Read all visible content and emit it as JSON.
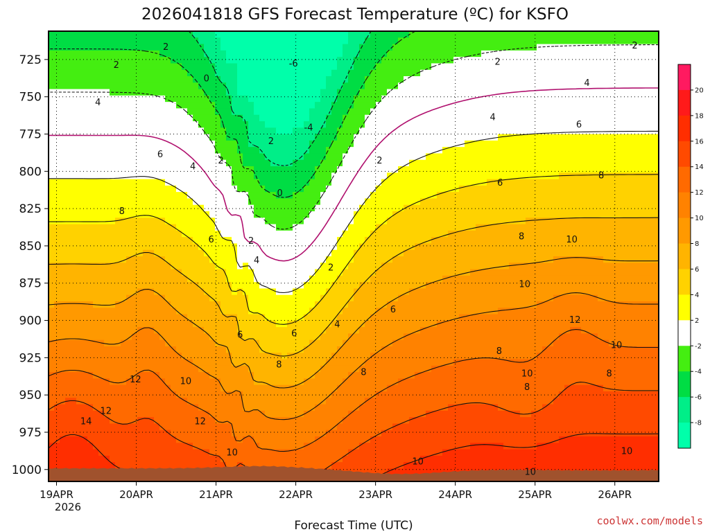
{
  "chart_data": {
    "type": "contour",
    "title": "2026041818 GFS Forecast Temperature (ºC) for KSFO",
    "xlabel": "Forecast Time (UTC)",
    "ylabel": "Pressure (hPa)",
    "x_ticks": [
      "19APR",
      "20APR",
      "21APR",
      "22APR",
      "23APR",
      "24APR",
      "25APR",
      "26APR"
    ],
    "x_sublabel": "2026",
    "y_ticks": [
      725,
      750,
      775,
      800,
      825,
      850,
      875,
      900,
      925,
      950,
      975,
      1000
    ],
    "ylim": [
      1008,
      706
    ],
    "xlim_days": [
      -0.1,
      7.55
    ],
    "colorbar_ticks": [
      20,
      18,
      16,
      14,
      12,
      10,
      8,
      6,
      4,
      2,
      -2,
      -4,
      -6,
      -8
    ],
    "colorbar_levels": [
      {
        "min": 20,
        "max": 22,
        "color": "#ff1a60"
      },
      {
        "min": 18,
        "max": 20,
        "color": "#ff1a1a"
      },
      {
        "min": 16,
        "max": 18,
        "color": "#ff2e00"
      },
      {
        "min": 14,
        "max": 16,
        "color": "#ff4a00"
      },
      {
        "min": 12,
        "max": 14,
        "color": "#ff6a00"
      },
      {
        "min": 10,
        "max": 12,
        "color": "#ff8200"
      },
      {
        "min": 8,
        "max": 10,
        "color": "#ff9900"
      },
      {
        "min": 6,
        "max": 8,
        "color": "#ffb400"
      },
      {
        "min": 4,
        "max": 6,
        "color": "#ffd200"
      },
      {
        "min": 2,
        "max": 4,
        "color": "#ffff00"
      },
      {
        "min": -2,
        "max": 2,
        "color": "#ffffff"
      },
      {
        "min": -4,
        "max": -2,
        "color": "#44ee11"
      },
      {
        "min": -6,
        "max": -4,
        "color": "#00dd44"
      },
      {
        "min": -8,
        "max": -6,
        "color": "#00ee88"
      },
      {
        "min": -10,
        "max": -8,
        "color": "#00ffaa"
      }
    ],
    "contour_labels": [
      {
        "text": "2",
        "day": 1.37,
        "p": 717
      },
      {
        "text": "-6",
        "day": 2.97,
        "p": 728
      },
      {
        "text": "2",
        "day": 7.25,
        "p": 716
      },
      {
        "text": "2",
        "day": 5.53,
        "p": 727
      },
      {
        "text": "2",
        "day": 0.75,
        "p": 729
      },
      {
        "text": "0",
        "day": 1.88,
        "p": 738
      },
      {
        "text": "4",
        "day": 0.52,
        "p": 754
      },
      {
        "text": "4",
        "day": 6.65,
        "p": 741
      },
      {
        "text": "-4",
        "day": 3.16,
        "p": 771
      },
      {
        "text": "4",
        "day": 5.47,
        "p": 764
      },
      {
        "text": "6",
        "day": 6.55,
        "p": 769
      },
      {
        "text": "2",
        "day": 2.69,
        "p": 780
      },
      {
        "text": "2",
        "day": 2.06,
        "p": 793
      },
      {
        "text": "2",
        "day": 4.05,
        "p": 793
      },
      {
        "text": "6",
        "day": 1.3,
        "p": 789
      },
      {
        "text": "4",
        "day": 1.71,
        "p": 797
      },
      {
        "text": "8",
        "day": 6.83,
        "p": 803
      },
      {
        "text": "6",
        "day": 5.56,
        "p": 808
      },
      {
        "text": "0",
        "day": 2.8,
        "p": 815
      },
      {
        "text": "8",
        "day": 0.82,
        "p": 827
      },
      {
        "text": "8",
        "day": 5.83,
        "p": 844
      },
      {
        "text": "6",
        "day": 1.94,
        "p": 846
      },
      {
        "text": "2",
        "day": 2.44,
        "p": 847
      },
      {
        "text": "10",
        "day": 6.46,
        "p": 846
      },
      {
        "text": "4",
        "day": 2.51,
        "p": 860
      },
      {
        "text": "2",
        "day": 3.44,
        "p": 865
      },
      {
        "text": "10",
        "day": 5.87,
        "p": 876
      },
      {
        "text": "6",
        "day": 4.22,
        "p": 893
      },
      {
        "text": "4",
        "day": 3.52,
        "p": 903
      },
      {
        "text": "12",
        "day": 6.5,
        "p": 900
      },
      {
        "text": "6",
        "day": 2.3,
        "p": 910
      },
      {
        "text": "6",
        "day": 2.98,
        "p": 909
      },
      {
        "text": "10",
        "day": 7.02,
        "p": 917
      },
      {
        "text": "8",
        "day": 5.55,
        "p": 921
      },
      {
        "text": "8",
        "day": 7.95,
        "p": 921
      },
      {
        "text": "8",
        "day": 2.79,
        "p": 930
      },
      {
        "text": "8",
        "day": 3.85,
        "p": 935
      },
      {
        "text": "10",
        "day": 5.9,
        "p": 936
      },
      {
        "text": "8",
        "day": 6.93,
        "p": 936
      },
      {
        "text": "12",
        "day": 0.99,
        "p": 940
      },
      {
        "text": "10",
        "day": 1.62,
        "p": 941
      },
      {
        "text": "8",
        "day": 5.9,
        "p": 945
      },
      {
        "text": "12",
        "day": 0.62,
        "p": 961
      },
      {
        "text": "14",
        "day": 0.37,
        "p": 968
      },
      {
        "text": "12",
        "day": 1.8,
        "p": 968
      },
      {
        "text": "10",
        "day": 7.15,
        "p": 988
      },
      {
        "text": "10",
        "day": 2.2,
        "p": 989
      },
      {
        "text": "10",
        "day": 4.53,
        "p": 995
      },
      {
        "text": "10",
        "day": 5.94,
        "p": 1002
      }
    ]
  },
  "footer": {
    "credit": "coolwx.com/models",
    "credit_color": "#cc3333"
  }
}
